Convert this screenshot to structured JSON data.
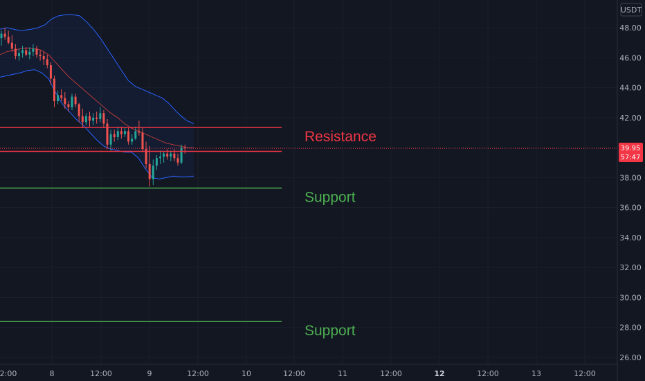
{
  "chart_data": {
    "type": "candlestick",
    "currency": "USDT",
    "ylim": [
      25.6,
      49.3
    ],
    "y_ticks": [
      "48.00",
      "46.00",
      "44.00",
      "42.00",
      "40.00",
      "38.00",
      "36.00",
      "34.00",
      "32.00",
      "30.00",
      "28.00",
      "26.00"
    ],
    "x_ticks": [
      {
        "label": "2:00",
        "bold": false
      },
      {
        "label": "8",
        "bold": false
      },
      {
        "label": "12:00",
        "bold": false
      },
      {
        "label": "9",
        "bold": false
      },
      {
        "label": "12:00",
        "bold": false
      },
      {
        "label": "10",
        "bold": false
      },
      {
        "label": "12:00",
        "bold": false
      },
      {
        "label": "11",
        "bold": false
      },
      {
        "label": "12:00",
        "bold": false
      },
      {
        "label": "12",
        "bold": true
      },
      {
        "label": "12:00",
        "bold": false
      },
      {
        "label": "13",
        "bold": false
      },
      {
        "label": "12:00",
        "bold": false
      }
    ],
    "last_price": {
      "label": "39.95",
      "timer": "57:47",
      "value": 39.95
    },
    "levels": [
      {
        "name": "Resistance",
        "value": 41.35,
        "color": "#f23645"
      },
      {
        "name": "",
        "value": 39.75,
        "color": "#f23645"
      },
      {
        "name": "Support",
        "value": 37.3,
        "color": "#4caf50"
      },
      {
        "name": "Support",
        "value": 28.4,
        "color": "#4caf50"
      }
    ],
    "candles": [
      [
        47.3,
        47.8,
        46.8,
        47.6
      ],
      [
        47.6,
        48.0,
        47.2,
        47.4
      ],
      [
        47.4,
        47.8,
        46.9,
        47.0
      ],
      [
        47.0,
        47.5,
        46.4,
        46.6
      ],
      [
        46.6,
        46.9,
        45.9,
        46.1
      ],
      [
        46.1,
        46.6,
        45.8,
        46.3
      ],
      [
        46.3,
        46.8,
        46.0,
        46.5
      ],
      [
        46.5,
        46.7,
        46.1,
        46.2
      ],
      [
        46.2,
        46.7,
        45.9,
        46.4
      ],
      [
        46.4,
        46.9,
        46.1,
        46.6
      ],
      [
        46.6,
        46.8,
        46.0,
        46.2
      ],
      [
        46.2,
        46.5,
        45.8,
        46.1
      ],
      [
        46.1,
        46.4,
        45.5,
        45.9
      ],
      [
        45.9,
        46.2,
        45.3,
        45.5
      ],
      [
        45.5,
        45.7,
        44.2,
        44.6
      ],
      [
        44.6,
        44.8,
        42.7,
        43.1
      ],
      [
        43.1,
        43.8,
        42.9,
        43.5
      ],
      [
        43.5,
        43.9,
        43.1,
        43.3
      ],
      [
        43.3,
        43.7,
        42.6,
        42.9
      ],
      [
        42.9,
        43.1,
        42.4,
        42.7
      ],
      [
        42.7,
        43.6,
        42.5,
        43.4
      ],
      [
        43.4,
        43.6,
        42.7,
        42.9
      ],
      [
        42.9,
        43.0,
        41.7,
        42.1
      ],
      [
        42.1,
        42.6,
        41.3,
        41.7
      ],
      [
        41.7,
        42.3,
        41.5,
        42.1
      ],
      [
        42.1,
        42.4,
        41.4,
        41.8
      ],
      [
        41.8,
        42.3,
        41.5,
        42.0
      ],
      [
        42.0,
        42.4,
        41.6,
        41.9
      ],
      [
        41.9,
        42.7,
        41.7,
        42.3
      ],
      [
        42.3,
        42.5,
        41.3,
        41.6
      ],
      [
        41.6,
        41.9,
        39.9,
        40.2
      ],
      [
        40.2,
        41.2,
        39.8,
        40.9
      ],
      [
        40.9,
        41.2,
        40.4,
        40.7
      ],
      [
        40.7,
        41.4,
        40.5,
        41.1
      ],
      [
        41.1,
        41.4,
        40.6,
        40.9
      ],
      [
        40.9,
        41.3,
        40.7,
        41.1
      ],
      [
        41.1,
        41.3,
        40.2,
        40.4
      ],
      [
        40.4,
        40.9,
        40.2,
        40.6
      ],
      [
        40.6,
        41.4,
        40.5,
        41.1
      ],
      [
        41.1,
        41.8,
        40.8,
        41.0
      ],
      [
        41.0,
        41.3,
        39.7,
        39.9
      ],
      [
        39.9,
        40.4,
        38.6,
        38.9
      ],
      [
        38.9,
        40.1,
        37.4,
        37.9
      ],
      [
        37.9,
        39.2,
        37.5,
        38.8
      ],
      [
        38.8,
        39.5,
        38.5,
        39.3
      ],
      [
        39.3,
        39.8,
        38.9,
        39.4
      ],
      [
        39.4,
        39.7,
        39.0,
        39.6
      ],
      [
        39.6,
        39.9,
        39.2,
        39.4
      ],
      [
        39.4,
        39.8,
        39.1,
        39.6
      ],
      [
        39.6,
        39.9,
        39.1,
        39.3
      ],
      [
        39.3,
        39.6,
        38.8,
        39.0
      ],
      [
        39.0,
        40.2,
        38.9,
        40.0
      ],
      [
        40.0,
        40.2,
        39.6,
        39.95
      ]
    ],
    "bb_upper": [
      [
        0,
        47.9
      ],
      [
        10,
        48.0
      ],
      [
        20,
        47.9
      ],
      [
        30,
        47.8
      ],
      [
        45,
        47.9
      ],
      [
        55,
        48.0
      ],
      [
        65,
        48.2
      ],
      [
        75,
        48.6
      ],
      [
        85,
        48.8
      ],
      [
        100,
        48.9
      ],
      [
        115,
        48.8
      ],
      [
        125,
        48.4
      ],
      [
        135,
        47.9
      ],
      [
        145,
        47.3
      ],
      [
        155,
        46.6
      ],
      [
        165,
        45.9
      ],
      [
        175,
        45.2
      ],
      [
        185,
        44.5
      ],
      [
        195,
        44.1
      ],
      [
        205,
        43.9
      ],
      [
        215,
        43.7
      ],
      [
        225,
        43.5
      ],
      [
        235,
        43.3
      ],
      [
        245,
        42.9
      ],
      [
        255,
        42.4
      ],
      [
        262,
        42.1
      ],
      [
        270,
        41.8
      ],
      [
        280,
        41.6
      ]
    ],
    "bb_middle": [
      [
        0,
        46.2
      ],
      [
        10,
        46.4
      ],
      [
        20,
        46.5
      ],
      [
        30,
        46.6
      ],
      [
        40,
        46.65
      ],
      [
        50,
        46.6
      ],
      [
        60,
        46.5
      ],
      [
        70,
        46.2
      ],
      [
        80,
        45.7
      ],
      [
        90,
        45.2
      ],
      [
        100,
        44.7
      ],
      [
        110,
        44.3
      ],
      [
        120,
        43.9
      ],
      [
        130,
        43.5
      ],
      [
        140,
        43.1
      ],
      [
        150,
        42.7
      ],
      [
        160,
        42.3
      ],
      [
        170,
        42.0
      ],
      [
        180,
        41.6
      ],
      [
        190,
        41.3
      ],
      [
        200,
        41.1
      ],
      [
        210,
        40.9
      ],
      [
        220,
        40.7
      ],
      [
        230,
        40.5
      ],
      [
        240,
        40.3
      ],
      [
        250,
        40.2
      ],
      [
        260,
        40.1
      ],
      [
        270,
        40.0
      ],
      [
        280,
        40.0
      ]
    ],
    "bb_lower": [
      [
        0,
        44.7
      ],
      [
        10,
        44.8
      ],
      [
        20,
        44.9
      ],
      [
        30,
        45.0
      ],
      [
        40,
        45.15
      ],
      [
        50,
        45.2
      ],
      [
        60,
        45.0
      ],
      [
        70,
        44.6
      ],
      [
        80,
        43.7
      ],
      [
        90,
        42.9
      ],
      [
        100,
        42.4
      ],
      [
        110,
        41.9
      ],
      [
        120,
        41.5
      ],
      [
        130,
        41.0
      ],
      [
        140,
        40.5
      ],
      [
        150,
        40.1
      ],
      [
        160,
        39.9
      ],
      [
        170,
        39.8
      ],
      [
        180,
        39.7
      ],
      [
        190,
        39.7
      ],
      [
        200,
        39.3
      ],
      [
        210,
        38.6
      ],
      [
        220,
        38.0
      ],
      [
        230,
        37.9
      ],
      [
        240,
        38.0
      ],
      [
        250,
        38.1
      ],
      [
        260,
        38.05
      ],
      [
        270,
        38.05
      ],
      [
        280,
        38.1
      ]
    ]
  }
}
